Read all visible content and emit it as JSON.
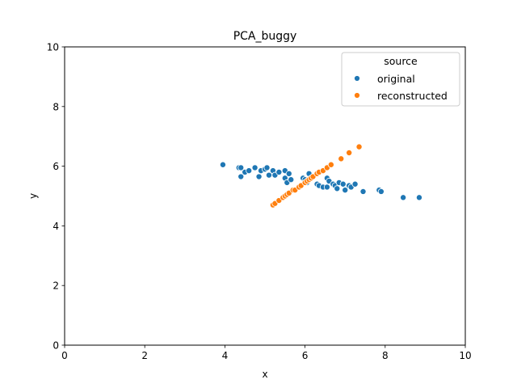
{
  "chart_data": {
    "type": "scatter",
    "title": "PCA_buggy",
    "xlabel": "x",
    "ylabel": "y",
    "xlim": [
      0,
      10
    ],
    "ylim": [
      0,
      10
    ],
    "xticks": [
      "0",
      "2",
      "4",
      "6",
      "8",
      "10"
    ],
    "yticks": [
      "0",
      "2",
      "4",
      "6",
      "8",
      "10"
    ],
    "grid": false,
    "legend": {
      "title": "source",
      "placement": "top-right"
    },
    "series": [
      {
        "name": "original",
        "color": "#1f77b4",
        "points": [
          [
            3.95,
            6.05
          ],
          [
            4.35,
            5.95
          ],
          [
            4.4,
            5.95
          ],
          [
            4.4,
            5.65
          ],
          [
            4.5,
            5.8
          ],
          [
            4.6,
            5.85
          ],
          [
            4.75,
            5.95
          ],
          [
            4.85,
            5.65
          ],
          [
            4.9,
            5.85
          ],
          [
            5.0,
            5.9
          ],
          [
            5.05,
            5.95
          ],
          [
            5.1,
            5.7
          ],
          [
            5.2,
            5.85
          ],
          [
            5.25,
            5.7
          ],
          [
            5.35,
            5.8
          ],
          [
            5.5,
            5.85
          ],
          [
            5.5,
            5.6
          ],
          [
            5.55,
            5.45
          ],
          [
            5.6,
            5.75
          ],
          [
            5.65,
            5.55
          ],
          [
            5.95,
            5.6
          ],
          [
            6.0,
            5.55
          ],
          [
            6.05,
            5.45
          ],
          [
            6.1,
            5.75
          ],
          [
            6.15,
            5.6
          ],
          [
            6.3,
            5.4
          ],
          [
            6.35,
            5.35
          ],
          [
            6.45,
            5.3
          ],
          [
            6.55,
            5.6
          ],
          [
            6.55,
            5.3
          ],
          [
            6.6,
            5.5
          ],
          [
            6.7,
            5.4
          ],
          [
            6.75,
            5.35
          ],
          [
            6.8,
            5.25
          ],
          [
            6.85,
            5.45
          ],
          [
            6.95,
            5.4
          ],
          [
            7.0,
            5.2
          ],
          [
            7.1,
            5.35
          ],
          [
            7.15,
            5.3
          ],
          [
            7.25,
            5.4
          ],
          [
            7.45,
            5.15
          ],
          [
            7.85,
            5.2
          ],
          [
            7.9,
            5.15
          ],
          [
            8.45,
            4.95
          ],
          [
            8.85,
            4.95
          ]
        ]
      },
      {
        "name": "reconstructed",
        "color": "#ff7f0e",
        "points": [
          [
            5.2,
            4.7
          ],
          [
            5.25,
            4.75
          ],
          [
            5.35,
            4.85
          ],
          [
            5.45,
            4.95
          ],
          [
            5.5,
            5.0
          ],
          [
            5.55,
            5.05
          ],
          [
            5.6,
            5.1
          ],
          [
            5.7,
            5.2
          ],
          [
            5.75,
            5.2
          ],
          [
            5.85,
            5.3
          ],
          [
            5.9,
            5.35
          ],
          [
            6.0,
            5.45
          ],
          [
            6.05,
            5.5
          ],
          [
            6.1,
            5.55
          ],
          [
            6.15,
            5.6
          ],
          [
            6.2,
            5.65
          ],
          [
            6.3,
            5.75
          ],
          [
            6.35,
            5.8
          ],
          [
            6.45,
            5.85
          ],
          [
            6.55,
            5.95
          ],
          [
            6.65,
            6.05
          ],
          [
            6.9,
            6.25
          ],
          [
            7.1,
            6.45
          ],
          [
            7.35,
            6.65
          ]
        ]
      }
    ]
  }
}
